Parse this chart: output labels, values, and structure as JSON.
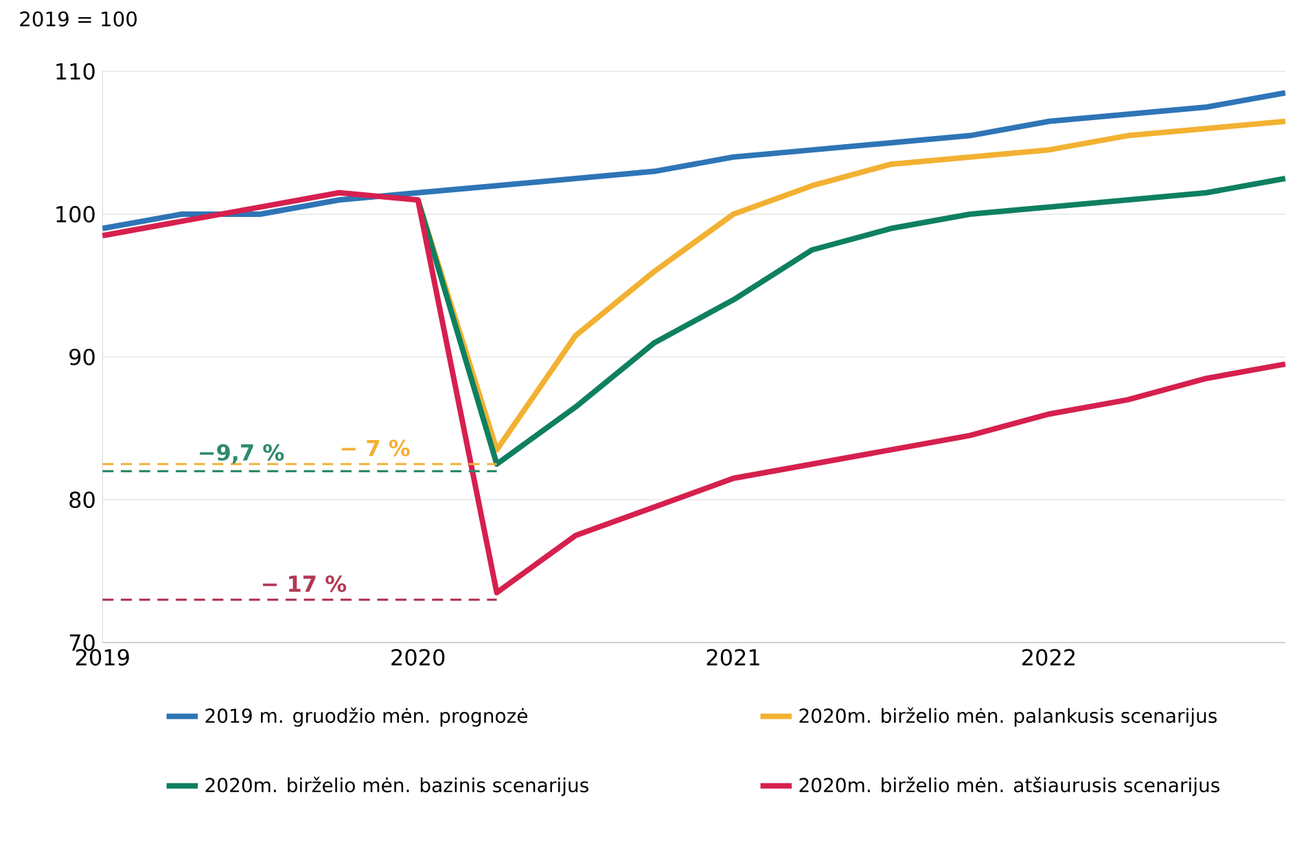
{
  "chart_data": {
    "type": "line",
    "xlim": [
      2019,
      2022.75
    ],
    "xticks": [
      2019,
      2020,
      2021,
      2022
    ],
    "ylim": [
      70,
      110
    ],
    "yticks": [
      70,
      80,
      90,
      100,
      110
    ],
    "grid": "y",
    "legend": "bottom",
    "line_style": "solid",
    "series": [
      {
        "name": "2019 m. gruodžio mėn. prognozė",
        "color": "#2e75b6",
        "x": [
          2019,
          2019.25,
          2019.5,
          2019.75,
          2020,
          2020.25,
          2020.5,
          2020.75,
          2021,
          2021.25,
          2021.5,
          2021.75,
          2022,
          2022.25,
          2022.5,
          2022.75
        ],
        "values": [
          99,
          100,
          100,
          101,
          101.5,
          102,
          102.5,
          103,
          104,
          104.5,
          105,
          105.5,
          106.5,
          107,
          107.5,
          108.5
        ]
      },
      {
        "name": "2020m. birželio mėn. palankusis scenarijus",
        "color": "#f2b132",
        "x": [
          2020,
          2020.25,
          2020.5,
          2020.75,
          2021,
          2021.25,
          2021.5,
          2021.75,
          2022,
          2022.25,
          2022.5,
          2022.75
        ],
        "values": [
          101,
          83.5,
          91.5,
          96,
          100,
          102,
          103.5,
          104,
          104.5,
          105.5,
          106,
          106.5
        ]
      },
      {
        "name": "2020m. birželio mėn. bazinis scenarijus",
        "color": "#0e8060",
        "x": [
          2020,
          2020.25,
          2020.5,
          2020.75,
          2021,
          2021.25,
          2021.5,
          2021.75,
          2022,
          2022.25,
          2022.5,
          2022.75
        ],
        "values": [
          101,
          82.5,
          86.5,
          91,
          94,
          97.5,
          99,
          100,
          100.5,
          101,
          101.5,
          102.5
        ]
      },
      {
        "name": "2020m. birželio mėn. atšiaurusis scenarijus",
        "color": "#d6204e",
        "x": [
          2019,
          2019.25,
          2019.5,
          2019.75,
          2020,
          2020.25,
          2020.5,
          2020.75,
          2021,
          2021.25,
          2021.5,
          2021.75,
          2022,
          2022.25,
          2022.5,
          2022.75
        ],
        "values": [
          98.5,
          99.5,
          100.5,
          101.5,
          101,
          73.5,
          77.5,
          79.5,
          81.5,
          82.5,
          83.5,
          84.5,
          86,
          87,
          88.5,
          89.5
        ]
      },
      {
        "color": "#f2b132",
        "line_style": "dashed",
        "x": [
          2019,
          2020.25
        ],
        "values": [
          82.5,
          82.5
        ]
      },
      {
        "color": "#2e8a6a",
        "line_style": "dashed",
        "x": [
          2019,
          2020.25
        ],
        "values": [
          82,
          82
        ]
      },
      {
        "color": "#b23a55",
        "line_style": "dashed",
        "x": [
          2019,
          2020.25
        ],
        "values": [
          73,
          73
        ]
      }
    ],
    "annotations": [
      "2019 = 100",
      {
        "text": "− 7 %",
        "x": 2019.75,
        "y": 82.5
      },
      {
        "text": "−9,7 %",
        "x": 2019.3,
        "y": 82
      },
      {
        "text": "− 17 %",
        "x": 2019.5,
        "y": 73
      }
    ]
  }
}
